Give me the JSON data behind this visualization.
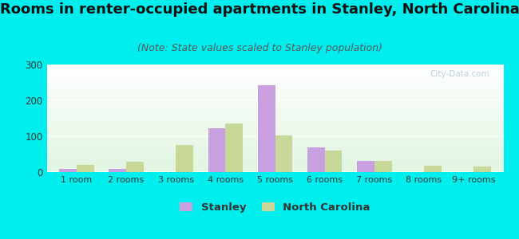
{
  "title": "Rooms in renter-occupied apartments in Stanley, North Carolina",
  "subtitle": "(Note: State values scaled to Stanley population)",
  "categories": [
    "1 room",
    "2 rooms",
    "3 rooms",
    "4 rooms",
    "5 rooms",
    "6 rooms",
    "7 rooms",
    "8 rooms",
    "9+ rooms"
  ],
  "stanley": [
    10,
    8,
    0,
    122,
    243,
    68,
    32,
    0,
    0
  ],
  "nc": [
    20,
    28,
    75,
    135,
    103,
    60,
    32,
    18,
    15
  ],
  "stanley_color": "#c8a0e0",
  "nc_color": "#c8d898",
  "background_color": "#00eeee",
  "ylim": [
    0,
    300
  ],
  "yticks": [
    0,
    100,
    200,
    300
  ],
  "bar_width": 0.35,
  "title_fontsize": 13,
  "subtitle_fontsize": 9,
  "watermark": "City-Data.com",
  "legend_stanley": "Stanley",
  "legend_nc": "North Carolina"
}
